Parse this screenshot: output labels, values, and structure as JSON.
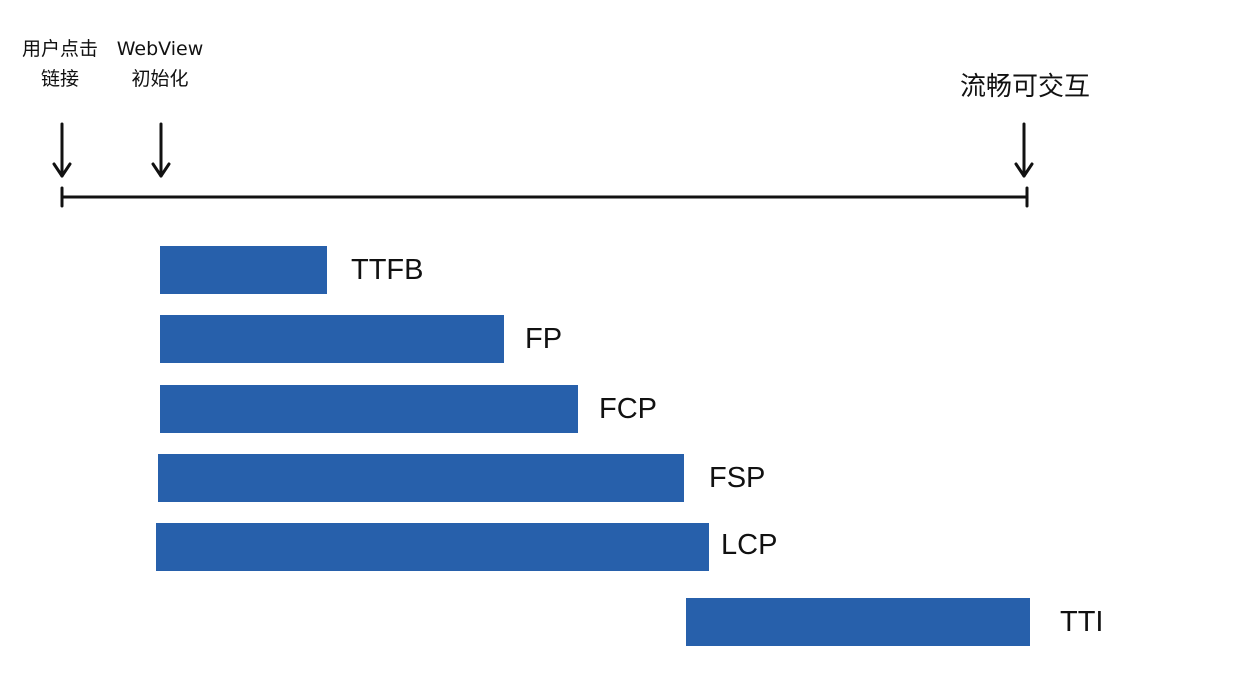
{
  "milestones": {
    "click_link": "用户点击\n链接",
    "webview_init": "WebView\n初始化",
    "interactive": "流畅可交互"
  },
  "metrics": [
    {
      "name": "TTFB"
    },
    {
      "name": "FP"
    },
    {
      "name": "FCP"
    },
    {
      "name": "FSP"
    },
    {
      "name": "LCP"
    },
    {
      "name": "TTI"
    }
  ],
  "colors": {
    "bar": "#2760AB",
    "line": "#111111"
  }
}
